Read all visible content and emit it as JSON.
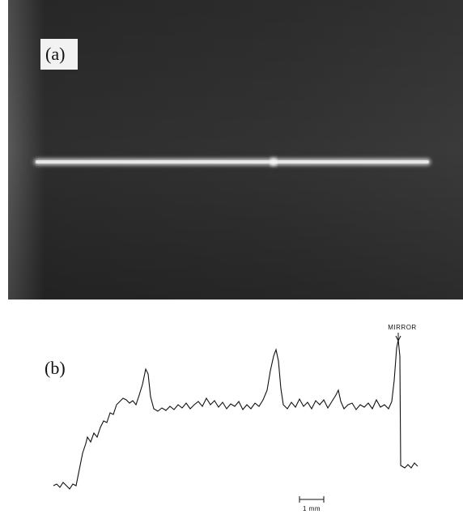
{
  "panel_a": {
    "label": "(a)"
  },
  "panel_b": {
    "label": "(b)",
    "annotation": "MIRROR",
    "scale_label": "1 mm"
  }
}
